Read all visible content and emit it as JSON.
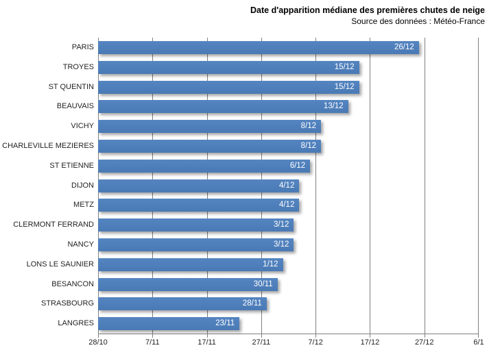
{
  "header": {
    "title": "Date d'apparition médiane des premières chutes de neige",
    "subtitle": "Source des données : Météo-France"
  },
  "colors": {
    "bar": "#4f81bd",
    "bar_shadow": "rgba(0,0,0,0.35)",
    "gridline": "#7f7f7f",
    "axis_line": "#7f7f7f",
    "value_label_text": "#ffffff",
    "axis_text": "#1f1f1f",
    "background": "#ffffff"
  },
  "chart_data": {
    "type": "bar",
    "orientation": "horizontal",
    "title": "Date d'apparition médiane des premières chutes de neige",
    "subtitle": "Source des données : Météo-France",
    "categories": [
      "PARIS",
      "TROYES",
      "ST QUENTIN",
      "BEAUVAIS",
      "VICHY",
      "CHARLEVILLE MEZIERES",
      "ST ETIENNE",
      "DIJON",
      "METZ",
      "CLERMONT FERRAND",
      "NANCY",
      "LONS LE SAUNIER",
      "BESANCON",
      "STRASBOURG",
      "LANGRES"
    ],
    "values": [
      "26/12",
      "15/12",
      "15/12",
      "13/12",
      "8/12",
      "8/12",
      "6/12",
      "4/12",
      "4/12",
      "3/12",
      "3/12",
      "1/12",
      "30/11",
      "28/11",
      "23/11"
    ],
    "values_days_from_axis_min": [
      59,
      48,
      48,
      46,
      41,
      41,
      39,
      37,
      37,
      36,
      36,
      34,
      33,
      31,
      26
    ],
    "x_axis": {
      "tick_labels": [
        "28/10",
        "7/11",
        "17/11",
        "27/11",
        "7/12",
        "17/12",
        "27/12",
        "6/1"
      ],
      "tick_days": [
        0,
        10,
        20,
        30,
        40,
        50,
        60,
        70
      ],
      "range_days": [
        0,
        70
      ],
      "interval_days": 10
    },
    "legend": "none",
    "grid": "vertical gridlines on",
    "data_labels": "inside end, white"
  }
}
